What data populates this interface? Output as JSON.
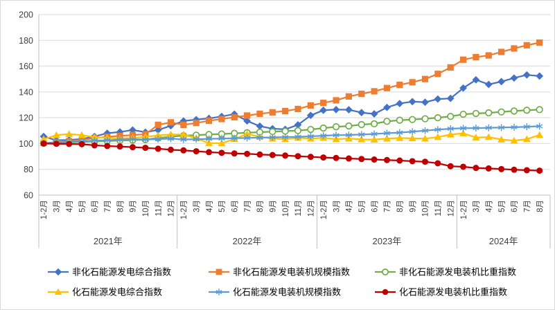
{
  "chart_data": {
    "type": "line",
    "title": "",
    "grid": true,
    "legend_position": "bottom",
    "colors": {
      "grid": "#d9d9d9",
      "axis_line": "#bfbfbf",
      "axis_text": "#404040"
    },
    "y_axis": {
      "min": 60,
      "max": 200,
      "step": 20,
      "ticks": [
        "60",
        "80",
        "100",
        "120",
        "140",
        "160",
        "180",
        "200"
      ]
    },
    "x_axis": {
      "year_groups": [
        {
          "label": "2021年",
          "count": 11
        },
        {
          "label": "2022年",
          "count": 11
        },
        {
          "label": "2023年",
          "count": 11
        },
        {
          "label": "2024年",
          "count": 7
        }
      ],
      "month_labels": [
        "1-2月",
        "3月",
        "4月",
        "5月",
        "6月",
        "7月",
        "8月",
        "9月",
        "10月",
        "11月",
        "12月",
        "1-2月",
        "3月",
        "4月",
        "5月",
        "6月",
        "7月",
        "8月",
        "9月",
        "10月",
        "11月",
        "12月",
        "1-2月",
        "3月",
        "4月",
        "5月",
        "6月",
        "7月",
        "8月",
        "9月",
        "10月",
        "11月",
        "12月",
        "1-2月",
        "3月",
        "4月",
        "5月",
        "6月",
        "7月",
        "8月"
      ]
    },
    "series": [
      {
        "name": "非化石能源发电综合指数",
        "color": "#4472c4",
        "marker": "diamond",
        "values": [
          105.5,
          102.5,
          102.8,
          103.5,
          105.5,
          108.0,
          109.0,
          110.5,
          108.8,
          110.5,
          113.8,
          117.5,
          118.5,
          119.5,
          121.0,
          122.8,
          117.5,
          113.5,
          111.5,
          111.0,
          114.5,
          121.8,
          125.8,
          126.3,
          126.2,
          124.0,
          123.0,
          128.0,
          131.0,
          132.5,
          132.0,
          134.5,
          135.0,
          143.0,
          149.4,
          145.8,
          148.0,
          150.8,
          153.2,
          152.3
        ]
      },
      {
        "name": "非化石能源发电装机规模指数",
        "color": "#ed7d31",
        "marker": "square",
        "values": [
          100.4,
          101.0,
          101.8,
          102.8,
          104.2,
          105.2,
          105.9,
          106.6,
          107.2,
          114.5,
          116.4,
          114.5,
          115.9,
          117.7,
          119.0,
          120.4,
          121.7,
          123.1,
          124.2,
          125.2,
          126.8,
          129.5,
          131.5,
          133.5,
          136.5,
          138.5,
          140.5,
          143.0,
          145.5,
          147.5,
          150.0,
          154.0,
          159.0,
          165.0,
          167.0,
          168.3,
          171.0,
          173.7,
          176.2,
          178.2
        ]
      },
      {
        "name": "非化石能源发电装机比重指数",
        "color": "#70ad47",
        "marker": "circle-open",
        "values": [
          100.3,
          100.6,
          100.9,
          101.2,
          101.6,
          102.0,
          102.3,
          102.6,
          103.0,
          104.3,
          105.3,
          106.1,
          106.5,
          107.0,
          107.4,
          107.9,
          108.4,
          108.8,
          109.2,
          109.6,
          110.0,
          110.9,
          112.0,
          113.0,
          113.6,
          114.7,
          115.3,
          117.2,
          118.1,
          118.6,
          119.2,
          120.0,
          121.0,
          122.7,
          123.3,
          123.8,
          124.5,
          125.2,
          125.8,
          126.3
        ]
      },
      {
        "name": "化石能源发电综合指数",
        "color": "#ffc000",
        "marker": "triangle",
        "values": [
          103.4,
          106.5,
          107.3,
          106.5,
          104.9,
          104.4,
          103.8,
          104.4,
          105.2,
          106.3,
          107.0,
          107.0,
          104.1,
          100.3,
          100.2,
          103.5,
          107.4,
          105.2,
          103.8,
          103.4,
          104.4,
          103.8,
          104.4,
          103.4,
          103.8,
          103.2,
          103.0,
          103.8,
          104.3,
          104.0,
          103.8,
          105.0,
          107.0,
          107.9,
          104.7,
          105.0,
          103.1,
          102.2,
          103.4,
          106.6
        ]
      },
      {
        "name": "化石能源发电装机规模指数",
        "color": "#5b9bd5",
        "marker": "asterisk",
        "values": [
          100.3,
          100.7,
          101.2,
          101.7,
          102.3,
          102.5,
          103.0,
          103.4,
          103.1,
          103.4,
          103.8,
          103.1,
          103.4,
          103.6,
          103.9,
          104.1,
          104.3,
          104.6,
          104.8,
          105.0,
          105.2,
          105.6,
          106.1,
          106.5,
          106.6,
          107.0,
          107.4,
          108.0,
          108.5,
          109.2,
          110.0,
          110.8,
          111.5,
          111.9,
          112.0,
          112.2,
          112.4,
          112.6,
          113.0,
          113.4
        ]
      },
      {
        "name": "化石能源发电装机比重指数",
        "color": "#c00000",
        "marker": "circle",
        "values": [
          100.0,
          99.8,
          99.7,
          99.5,
          98.6,
          98.1,
          97.7,
          97.2,
          96.7,
          96.0,
          95.2,
          94.7,
          94.0,
          93.3,
          92.8,
          92.3,
          92.0,
          91.5,
          91.1,
          90.7,
          90.2,
          89.7,
          89.2,
          88.8,
          88.4,
          88.0,
          87.6,
          87.2,
          86.8,
          86.3,
          85.9,
          84.7,
          82.4,
          82.0,
          81.1,
          80.7,
          80.2,
          79.7,
          79.3,
          79.0
        ]
      }
    ]
  }
}
